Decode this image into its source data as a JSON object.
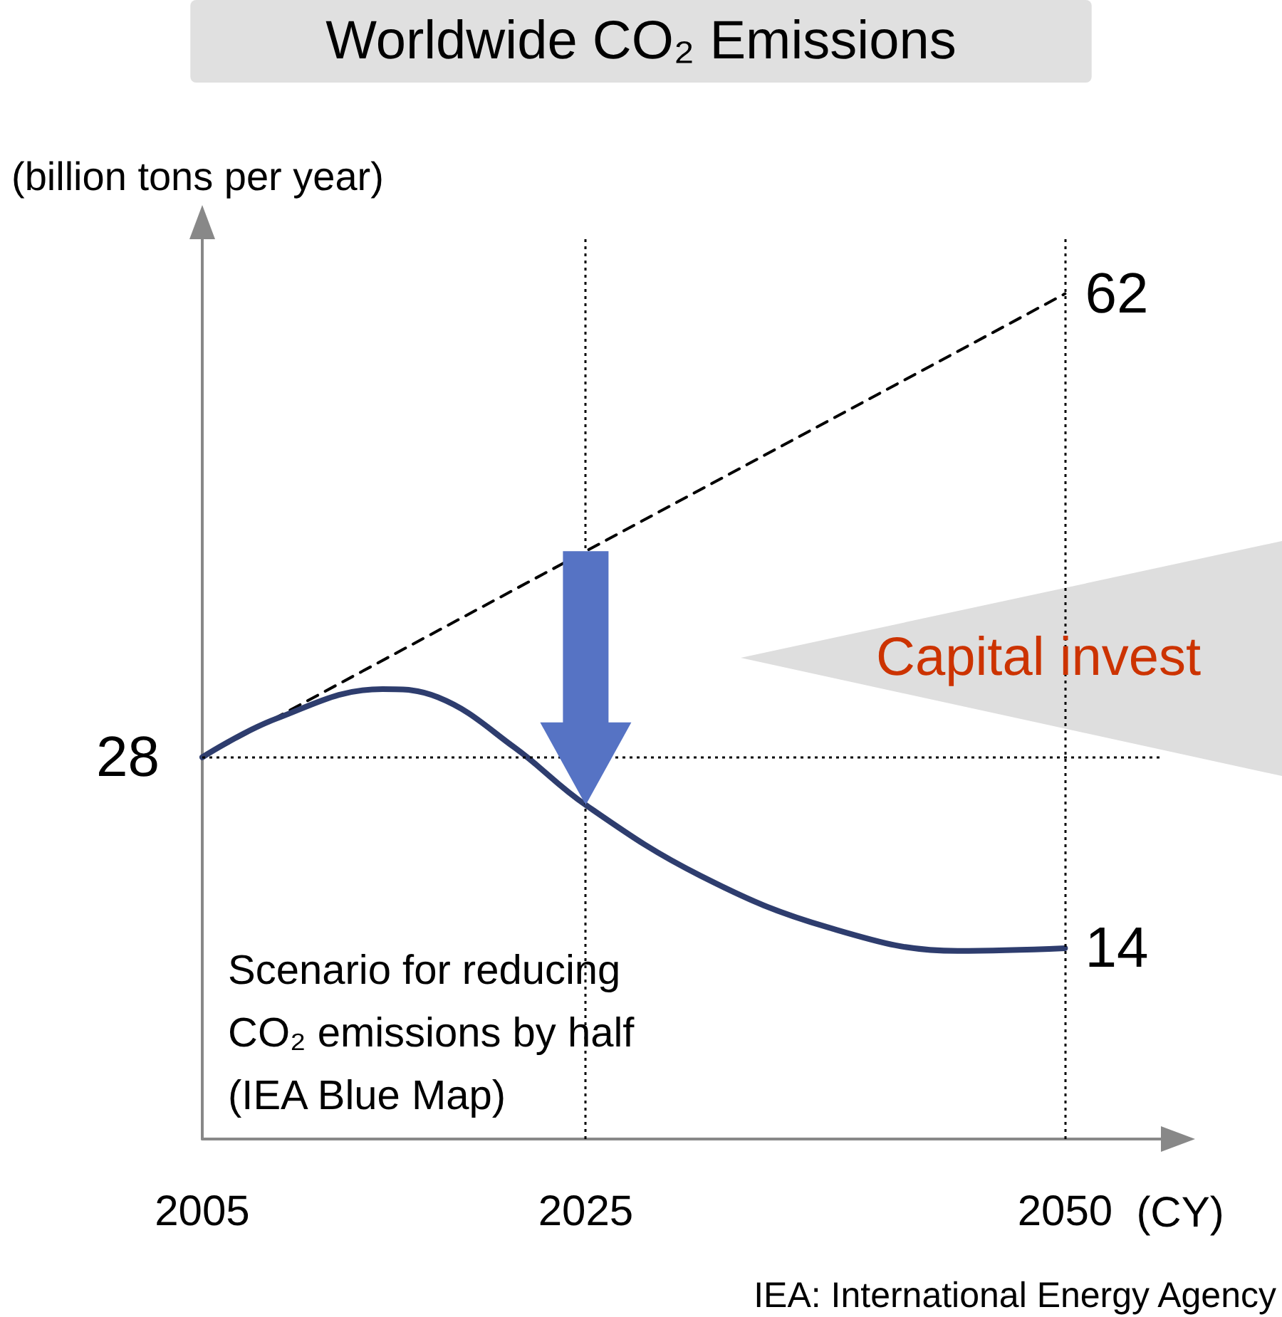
{
  "chart_data": {
    "type": "line",
    "title": "Worldwide CO₂ Emissions",
    "ylabel": "(billion tons per year)",
    "xlabel": "(CY)",
    "xlim": [
      2005,
      2055
    ],
    "xticks": [
      2005,
      2025,
      2050
    ],
    "ylim": [
      0,
      66
    ],
    "series": [
      {
        "color": "#000000",
        "line_style": "dashed",
        "x": [
          2005,
          2050
        ],
        "values": [
          28,
          62
        ],
        "value_labels": [
          null,
          "62"
        ]
      },
      {
        "color": "#2e3d6e",
        "line_style": "solid",
        "x": [
          2005,
          2008.8,
          2014.4,
          2017.3,
          2021.3,
          2025,
          2031,
          2037.7,
          2044.4,
          2050
        ],
        "values": [
          28,
          30.8,
          33,
          32.4,
          28.7,
          24.5,
          19.3,
          15.5,
          13.8,
          14
        ],
        "value_labels": [
          "28",
          null,
          null,
          null,
          null,
          null,
          null,
          null,
          null,
          "14"
        ]
      }
    ],
    "ref_lines": [
      {
        "axis": "y",
        "value": 28,
        "color": "#000000",
        "line_style": "dotted"
      },
      {
        "axis": "x",
        "value": 2025,
        "color": "#000000",
        "line_style": "dotted"
      },
      {
        "axis": "x",
        "value": 2050,
        "color": "#000000",
        "line_style": "dotted"
      }
    ],
    "annotations": [
      "Capital invest",
      "Scenario for reducing CO₂ emissions by half (IEA Blue Map)",
      "IEA: International Energy Agency"
    ],
    "grid": false
  }
}
